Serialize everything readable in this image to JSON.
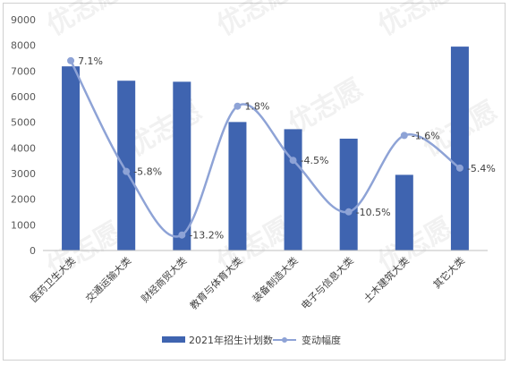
{
  "chart_data": {
    "type": "bar+line",
    "categories": [
      "医药卫生大类",
      "交通运输大类",
      "财经商贸大类",
      "教育与体育大类",
      "装备制造大类",
      "电子与信息大类",
      "土木建筑大类",
      "其它大类"
    ],
    "series": [
      {
        "name": "2021年招生计划数",
        "type": "bar",
        "values": [
          7180,
          6620,
          6580,
          5010,
          4730,
          4360,
          2950,
          7950
        ]
      },
      {
        "name": "变动幅度",
        "type": "line",
        "values": [
          7.1,
          -5.8,
          -13.2,
          1.8,
          -4.5,
          -10.5,
          -1.6,
          -5.4
        ],
        "labels": [
          "7.1%",
          "-5.8%",
          "-13.2%",
          "1.8%",
          "-4.5%",
          "-10.5%",
          "-1.6%",
          "-5.4%"
        ]
      }
    ],
    "y_ticks": [
      "0",
      "1000",
      "2000",
      "3000",
      "4000",
      "5000",
      "6000",
      "7000",
      "8000",
      "9000"
    ],
    "ylim": [
      0,
      9000
    ],
    "grid": false,
    "legend_position": "bottom",
    "colors": {
      "bar": "#3f64b0",
      "line": "#8ea3d6",
      "marker": "#8ea3d6",
      "axis": "#bfbfbf"
    },
    "watermark": "优志愿"
  }
}
